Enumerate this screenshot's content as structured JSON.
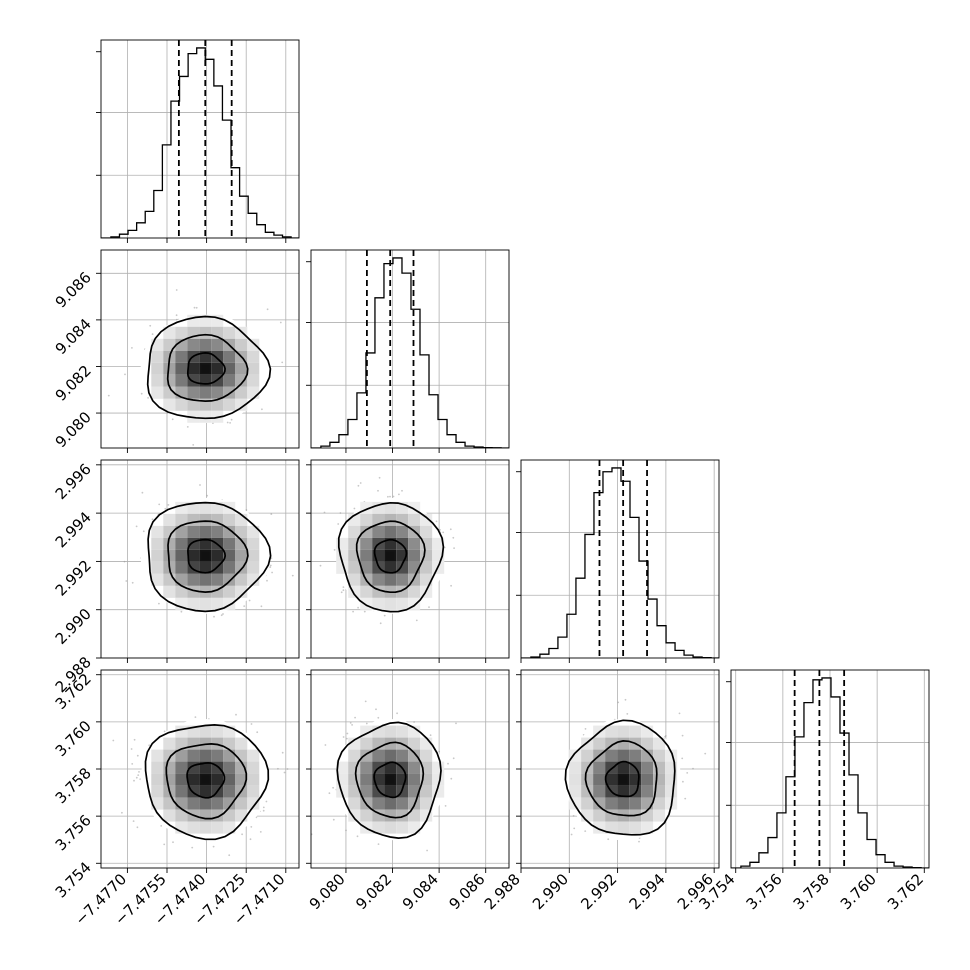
{
  "chart_data": {
    "type": "corner",
    "parameters": [
      {
        "index": 0,
        "range": [
          -7.478,
          -7.4705
        ],
        "mean": -7.47405,
        "sigma": 0.001,
        "quantiles": [
          -7.47505,
          -7.47405,
          -7.47305
        ],
        "xticks": [
          -7.477,
          -7.4755,
          -7.474,
          -7.4725,
          -7.471
        ],
        "xtick_labels": [
          "−7.4770",
          "−7.4755",
          "−7.4740",
          "−7.4725",
          "−7.4710"
        ],
        "yticks": [],
        "ytick_labels": []
      },
      {
        "index": 1,
        "range": [
          9.0785,
          9.087
        ],
        "mean": 9.0819,
        "sigma": 0.00095,
        "quantiles": [
          9.0809,
          9.0819,
          9.0829
        ],
        "xticks": [
          9.08,
          9.082,
          9.084,
          9.086
        ],
        "xtick_labels": [
          "9.080",
          "9.082",
          "9.084",
          "9.086"
        ],
        "yticks": [
          9.08,
          9.082,
          9.084,
          9.086
        ],
        "ytick_labels": [
          "9.080",
          "9.082",
          "9.084",
          "9.086"
        ]
      },
      {
        "index": 2,
        "range": [
          2.988,
          2.9962
        ],
        "mean": 2.99223,
        "sigma": 0.00098,
        "quantiles": [
          2.99125,
          2.99223,
          2.99322
        ],
        "xticks": [
          2.988,
          2.99,
          2.992,
          2.994,
          2.996
        ],
        "xtick_labels": [
          "2.988",
          "2.990",
          "2.992",
          "2.994",
          "2.996"
        ],
        "yticks": [
          2.988,
          2.99,
          2.992,
          2.994,
          2.996
        ],
        "ytick_labels": [
          "2.988",
          "2.990",
          "2.992",
          "2.994",
          "2.996"
        ]
      },
      {
        "index": 3,
        "range": [
          3.7538,
          3.7622
        ],
        "mean": 3.75755,
        "sigma": 0.00105,
        "quantiles": [
          3.7565,
          3.75755,
          3.7586
        ],
        "xticks": [
          3.754,
          3.756,
          3.758,
          3.76,
          3.762
        ],
        "xtick_labels": [
          "3.754",
          "3.756",
          "3.758",
          "3.760",
          "3.762"
        ],
        "yticks": [
          3.754,
          3.756,
          3.758,
          3.76,
          3.762
        ],
        "ytick_labels": [
          "3.754",
          "3.756",
          "3.758",
          "3.760",
          "3.762"
        ]
      }
    ],
    "histograms": [
      [
        0.006,
        0.02,
        0.04,
        0.08,
        0.14,
        0.25,
        0.49,
        0.72,
        0.85,
        0.97,
        1.0,
        0.94,
        0.8,
        0.62,
        0.37,
        0.22,
        0.13,
        0.07,
        0.03,
        0.015,
        0.006
      ],
      [
        0.01,
        0.03,
        0.07,
        0.15,
        0.29,
        0.5,
        0.79,
        0.97,
        1.0,
        0.92,
        0.73,
        0.49,
        0.28,
        0.15,
        0.07,
        0.03,
        0.01,
        0.005,
        0.002,
        0.001
      ],
      [
        0.005,
        0.02,
        0.05,
        0.11,
        0.23,
        0.42,
        0.65,
        0.87,
        0.98,
        1.0,
        0.93,
        0.74,
        0.51,
        0.31,
        0.17,
        0.08,
        0.04,
        0.015,
        0.005,
        0.002
      ],
      [
        0.01,
        0.03,
        0.08,
        0.16,
        0.29,
        0.48,
        0.69,
        0.87,
        0.99,
        1.0,
        0.9,
        0.71,
        0.49,
        0.29,
        0.15,
        0.07,
        0.03,
        0.01,
        0.005,
        0.002
      ]
    ],
    "density_levels": [
      0.39,
      0.86,
      1.0
    ],
    "scatter_points_per_panel": 420,
    "show_titles": false,
    "grid": true,
    "colors": {
      "line": "#000000",
      "scatter": "#9a9a9a",
      "density_dark": "#000000",
      "grid": "#b0b0b0"
    }
  }
}
